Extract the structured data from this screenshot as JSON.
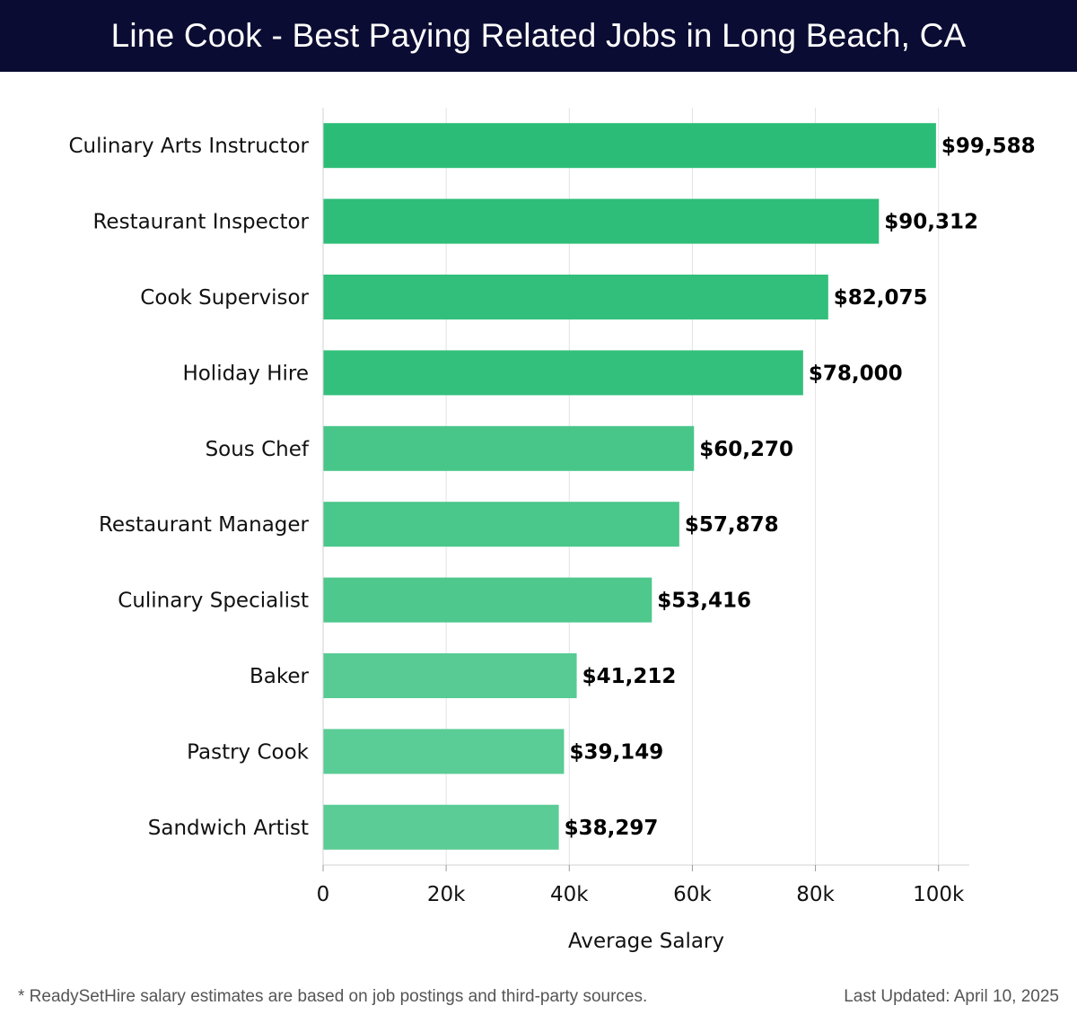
{
  "header": {
    "title": "Line Cook - Best Paying Related Jobs in Long Beach, CA"
  },
  "chart_data": {
    "type": "bar",
    "orientation": "horizontal",
    "categories": [
      "Culinary Arts Instructor",
      "Restaurant Inspector",
      "Cook Supervisor",
      "Holiday Hire",
      "Sous Chef",
      "Restaurant Manager",
      "Culinary Specialist",
      "Baker",
      "Pastry Cook",
      "Sandwich Artist"
    ],
    "values": [
      99588,
      90312,
      82075,
      78000,
      60270,
      57878,
      53416,
      41212,
      39149,
      38297
    ],
    "value_labels": [
      "$99,588",
      "$90,312",
      "$82,075",
      "$78,000",
      "$60,270",
      "$57,878",
      "$53,416",
      "$41,212",
      "$39,149",
      "$38,297"
    ],
    "bar_colors": [
      "#2bbd77",
      "#2ebe79",
      "#31bf7b",
      "#33c07c",
      "#48c68a",
      "#4ac78b",
      "#4ec88d",
      "#58cb94",
      "#5acc95",
      "#5bcc96"
    ],
    "xlabel": "Average Salary",
    "xlim": [
      0,
      105000
    ],
    "xticks": [
      0,
      20000,
      40000,
      60000,
      80000,
      100000
    ],
    "xtick_labels": [
      "0",
      "20k",
      "40k",
      "60k",
      "80k",
      "100k"
    ],
    "grid": true
  },
  "footer": {
    "note": "* ReadySetHire salary estimates are based on job postings and third-party sources.",
    "updated": "Last Updated: April 10, 2025"
  }
}
